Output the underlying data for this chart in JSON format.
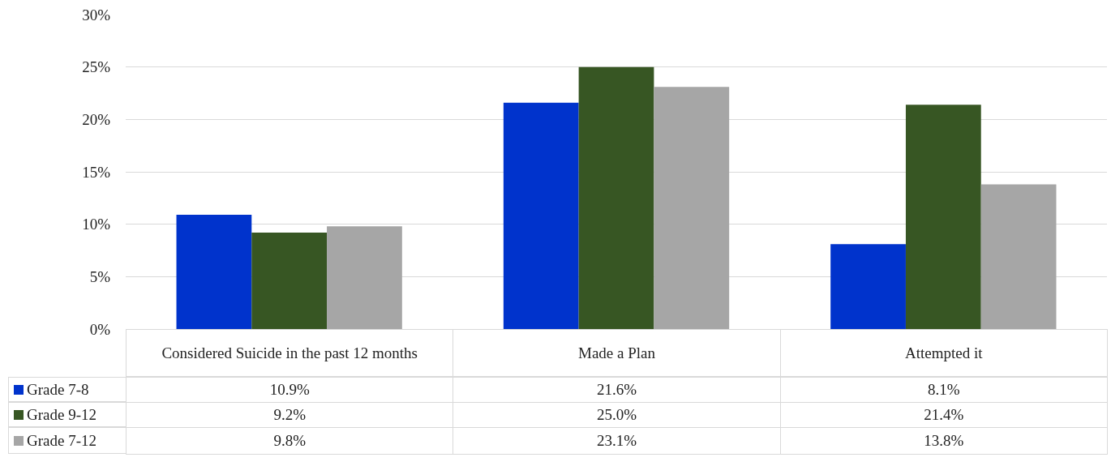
{
  "chart_data": {
    "type": "bar",
    "categories": [
      "Considered Suicide in the past 12 months",
      "Made a Plan",
      "Attempted it"
    ],
    "series": [
      {
        "name": "Grade  7-8",
        "color": "#0033cc",
        "values": [
          10.9,
          21.6,
          8.1
        ],
        "value_labels": [
          "10.9%",
          "21.6%",
          "8.1%"
        ]
      },
      {
        "name": "Grade  9-12",
        "color": "#375623",
        "values": [
          9.2,
          25.0,
          21.4
        ],
        "value_labels": [
          "9.2%",
          "25.0%",
          "21.4%"
        ]
      },
      {
        "name": "Grade  7-12",
        "color": "#a6a6a6",
        "values": [
          9.8,
          23.1,
          13.8
        ],
        "value_labels": [
          "9.8%",
          "23.1%",
          "13.8%"
        ]
      }
    ],
    "ylim": [
      0,
      30
    ],
    "yticks": [
      {
        "value": 0,
        "label": "0%"
      },
      {
        "value": 5,
        "label": "5%"
      },
      {
        "value": 10,
        "label": "10%"
      },
      {
        "value": 15,
        "label": "15%"
      },
      {
        "value": 20,
        "label": "20%"
      },
      {
        "value": 25,
        "label": "25%"
      },
      {
        "value": 30,
        "label": "30%"
      }
    ],
    "grid": "y",
    "legend": "bottom left"
  }
}
